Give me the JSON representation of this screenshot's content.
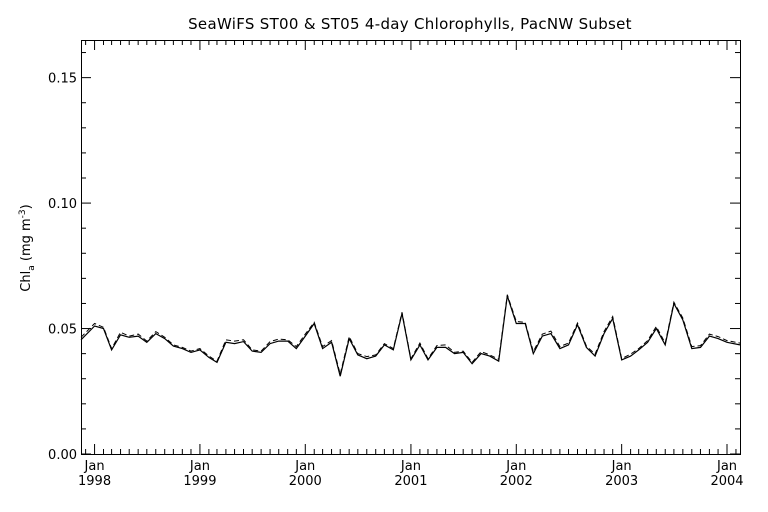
{
  "chart_data": {
    "type": "line",
    "title": "SeaWiFS ST00 & ST05 4-day Chlorophylls, PacNW Subset",
    "ylabel": "Chl_a (mg m^-3)",
    "ylabel_parts": {
      "main": "Chl",
      "sub": "a",
      "units_open": " (mg m",
      "sup": "-3",
      "units_close": ")"
    },
    "xlabel": "",
    "ylim": [
      0.0,
      0.165
    ],
    "xlim": [
      "1997-11-15",
      "2004-02-15"
    ],
    "grid": false,
    "y_ticks": [
      "0.00",
      "0.05",
      "0.10",
      "0.15"
    ],
    "x_ticks": [
      {
        "month": "Jan",
        "year": "1998",
        "date": "1998-01-01"
      },
      {
        "month": "Jan",
        "year": "1999",
        "date": "1999-01-01"
      },
      {
        "month": "Jan",
        "year": "2000",
        "date": "2000-01-01"
      },
      {
        "month": "Jan",
        "year": "2001",
        "date": "2001-01-01"
      },
      {
        "month": "Jan",
        "year": "2002",
        "date": "2002-01-01"
      },
      {
        "month": "Jan",
        "year": "2003",
        "date": "2003-01-01"
      },
      {
        "month": "Jan",
        "year": "2004",
        "date": "2004-01-01"
      }
    ],
    "series": [
      {
        "style": "solid",
        "x": [
          "1997-11-15",
          "1998-01-01",
          "1998-02-01",
          "1998-03-01",
          "1998-04-01",
          "1998-05-01",
          "1998-06-01",
          "1998-07-01",
          "1998-08-01",
          "1998-09-01",
          "1998-10-01",
          "1998-11-01",
          "1998-12-01",
          "1999-01-01",
          "1999-02-01",
          "1999-03-01",
          "1999-04-01",
          "1999-05-01",
          "1999-06-01",
          "1999-07-01",
          "1999-08-01",
          "1999-09-01",
          "1999-10-01",
          "1999-11-01",
          "1999-12-01",
          "2000-01-01",
          "2000-02-01",
          "2000-03-01",
          "2000-04-01",
          "2000-05-01",
          "2000-06-01",
          "2000-07-01",
          "2000-08-01",
          "2000-09-01",
          "2000-10-01",
          "2000-11-01",
          "2000-12-01",
          "2001-01-01",
          "2001-02-01",
          "2001-03-01",
          "2001-04-01",
          "2001-05-01",
          "2001-06-01",
          "2001-07-01",
          "2001-08-01",
          "2001-09-01",
          "2001-10-01",
          "2001-11-01",
          "2001-12-01",
          "2002-01-01",
          "2002-02-01",
          "2002-03-01",
          "2002-04-01",
          "2002-05-01",
          "2002-06-01",
          "2002-07-01",
          "2002-08-01",
          "2002-09-01",
          "2002-10-01",
          "2002-11-01",
          "2002-12-01",
          "2003-01-01",
          "2003-02-01",
          "2003-03-01",
          "2003-04-01",
          "2003-05-01",
          "2003-06-01",
          "2003-07-01",
          "2003-08-01",
          "2003-09-01",
          "2003-10-01",
          "2003-11-01",
          "2003-12-01",
          "2004-01-01",
          "2004-02-15"
        ],
        "values": [
          0.0455,
          0.051,
          0.05,
          0.0415,
          0.0475,
          0.0465,
          0.047,
          0.0445,
          0.048,
          0.046,
          0.043,
          0.042,
          0.0405,
          0.0415,
          0.0385,
          0.0365,
          0.0445,
          0.044,
          0.0448,
          0.041,
          0.0405,
          0.044,
          0.045,
          0.045,
          0.042,
          0.047,
          0.052,
          0.042,
          0.0445,
          0.031,
          0.046,
          0.0395,
          0.038,
          0.039,
          0.0435,
          0.0415,
          0.056,
          0.0375,
          0.0435,
          0.0375,
          0.0425,
          0.0425,
          0.04,
          0.0405,
          0.036,
          0.04,
          0.039,
          0.037,
          0.063,
          0.052,
          0.052,
          0.04,
          0.047,
          0.048,
          0.042,
          0.0435,
          0.0515,
          0.0425,
          0.039,
          0.048,
          0.054,
          0.0375,
          0.039,
          0.0415,
          0.0445,
          0.05,
          0.0435,
          0.06,
          0.0535,
          0.042,
          0.0425,
          0.047,
          0.046,
          0.0445,
          0.0435
        ]
      },
      {
        "style": "dashed",
        "x": [
          "1997-11-15",
          "1998-01-01",
          "1998-02-01",
          "1998-03-01",
          "1998-04-01",
          "1998-05-01",
          "1998-06-01",
          "1998-07-01",
          "1998-08-01",
          "1998-09-01",
          "1998-10-01",
          "1998-11-01",
          "1998-12-01",
          "1999-01-01",
          "1999-02-01",
          "1999-03-01",
          "1999-04-01",
          "1999-05-01",
          "1999-06-01",
          "1999-07-01",
          "1999-08-01",
          "1999-09-01",
          "1999-10-01",
          "1999-11-01",
          "1999-12-01",
          "2000-01-01",
          "2000-02-01",
          "2000-03-01",
          "2000-04-01",
          "2000-05-01",
          "2000-06-01",
          "2000-07-01",
          "2000-08-01",
          "2000-09-01",
          "2000-10-01",
          "2000-11-01",
          "2000-12-01",
          "2001-01-01",
          "2001-02-01",
          "2001-03-01",
          "2001-04-01",
          "2001-05-01",
          "2001-06-01",
          "2001-07-01",
          "2001-08-01",
          "2001-09-01",
          "2001-10-01",
          "2001-11-01",
          "2001-12-01",
          "2002-01-01",
          "2002-02-01",
          "2002-03-01",
          "2002-04-01",
          "2002-05-01",
          "2002-06-01",
          "2002-07-01",
          "2002-08-01",
          "2002-09-01",
          "2002-10-01",
          "2002-11-01",
          "2002-12-01",
          "2003-01-01",
          "2003-02-01",
          "2003-03-01",
          "2003-04-01",
          "2003-05-01",
          "2003-06-01",
          "2003-07-01",
          "2003-08-01",
          "2003-09-01",
          "2003-10-01",
          "2003-11-01",
          "2003-12-01",
          "2004-01-01",
          "2004-02-15"
        ],
        "values": [
          0.0465,
          0.052,
          0.0505,
          0.042,
          0.0485,
          0.047,
          0.0478,
          0.045,
          0.0488,
          0.0465,
          0.0435,
          0.0425,
          0.041,
          0.042,
          0.039,
          0.037,
          0.0455,
          0.045,
          0.0455,
          0.0415,
          0.041,
          0.0448,
          0.0458,
          0.0455,
          0.0428,
          0.0478,
          0.0525,
          0.0428,
          0.0452,
          0.0318,
          0.0468,
          0.04,
          0.0388,
          0.0395,
          0.044,
          0.042,
          0.0565,
          0.038,
          0.0442,
          0.038,
          0.0432,
          0.0435,
          0.0405,
          0.041,
          0.0365,
          0.0408,
          0.0395,
          0.0378,
          0.0635,
          0.0528,
          0.0525,
          0.0408,
          0.0478,
          0.049,
          0.0428,
          0.0442,
          0.0522,
          0.043,
          0.0398,
          0.0488,
          0.0548,
          0.038,
          0.0398,
          0.042,
          0.0452,
          0.0508,
          0.0442,
          0.0605,
          0.0542,
          0.0428,
          0.0432,
          0.0478,
          0.0468,
          0.0452,
          0.0442
        ]
      }
    ]
  }
}
